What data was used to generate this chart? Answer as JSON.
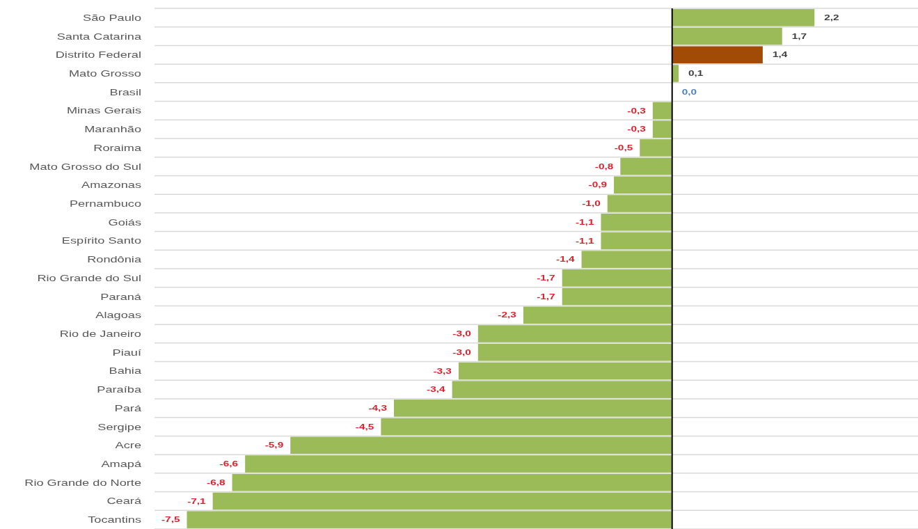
{
  "chart_data": {
    "type": "bar",
    "orientation": "horizontal",
    "categories": [
      "São Paulo",
      "Santa Catarina",
      "Distrito Federal",
      "Mato Grosso",
      "Brasil",
      "Minas Gerais",
      "Maranhão",
      "Roraima",
      "Mato Grosso do Sul",
      "Amazonas",
      "Pernambuco",
      "Goiás",
      "Espírito Santo",
      "Rondônia",
      "Rio Grande do Sul",
      "Paraná",
      "Alagoas",
      "Rio de Janeiro",
      "Piauí",
      "Bahia",
      "Paraíba",
      "Pará",
      "Sergipe",
      "Acre",
      "Amapá",
      "Rio Grande do Norte",
      "Ceará",
      "Tocantins"
    ],
    "values": [
      2.2,
      1.7,
      1.4,
      0.1,
      0.0,
      -0.3,
      -0.3,
      -0.5,
      -0.8,
      -0.9,
      -1.0,
      -1.1,
      -1.1,
      -1.4,
      -1.7,
      -1.7,
      -2.3,
      -3.0,
      -3.0,
      -3.3,
      -3.4,
      -4.3,
      -4.5,
      -5.9,
      -6.6,
      -6.8,
      -7.1,
      -7.5
    ],
    "colors": [
      "#9bbb59",
      "#9bbb59",
      "#a14b06",
      "#9bbb59",
      "#9bbb59",
      "#9bbb59",
      "#9bbb59",
      "#9bbb59",
      "#9bbb59",
      "#9bbb59",
      "#9bbb59",
      "#9bbb59",
      "#9bbb59",
      "#9bbb59",
      "#9bbb59",
      "#9bbb59",
      "#9bbb59",
      "#9bbb59",
      "#9bbb59",
      "#9bbb59",
      "#9bbb59",
      "#9bbb59",
      "#9bbb59",
      "#9bbb59",
      "#9bbb59",
      "#9bbb59",
      "#9bbb59",
      "#9bbb59"
    ],
    "value_labels": [
      "2,2",
      "1,7",
      "1,4",
      "0,1",
      "0,0",
      "-0,3",
      "-0,3",
      "-0,5",
      "-0,8",
      "-0,9",
      "-1,0",
      "-1,1",
      "-1,1",
      "-1,4",
      "-1,7",
      "-1,7",
      "-2,3",
      "-3,0",
      "-3,0",
      "-3,3",
      "-3,4",
      "-4,3",
      "-4,5",
      "-5,9",
      "-6,6",
      "-6,8",
      "-7,1",
      "-7,5"
    ],
    "xlim": [
      -8,
      3.8
    ],
    "grid": "y",
    "tick_labels": "y"
  }
}
